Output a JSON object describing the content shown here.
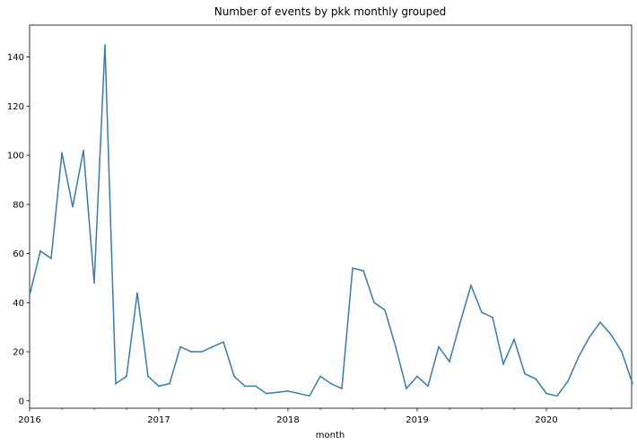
{
  "chart_data": {
    "type": "line",
    "title": "Number of events by pkk monthly grouped",
    "xlabel": "month",
    "ylabel": "",
    "x_tick_labels": [
      "2016",
      "2017",
      "2018",
      "2019",
      "2020"
    ],
    "y_tick_labels": [
      "0",
      "20",
      "40",
      "60",
      "80",
      "100",
      "120",
      "140"
    ],
    "ylim": [
      -3,
      153
    ],
    "grid": false,
    "legend": "none",
    "line_color": "#3a7ca5",
    "series": [
      {
        "x": [
          "2016-01",
          "2016-02",
          "2016-03",
          "2016-04",
          "2016-05",
          "2016-06",
          "2016-07",
          "2016-08",
          "2016-09",
          "2016-10",
          "2016-11",
          "2016-12",
          "2017-01",
          "2017-02",
          "2017-03",
          "2017-04",
          "2017-05",
          "2017-06",
          "2017-07",
          "2017-08",
          "2017-09",
          "2017-10",
          "2017-11",
          "2017-12",
          "2018-01",
          "2018-02",
          "2018-03",
          "2018-04",
          "2018-05",
          "2018-06",
          "2018-07",
          "2018-08",
          "2018-09",
          "2018-10",
          "2018-11",
          "2018-12",
          "2019-01",
          "2019-02",
          "2019-03",
          "2019-04",
          "2019-05",
          "2019-06",
          "2019-07",
          "2019-08",
          "2019-09",
          "2019-10",
          "2019-11",
          "2019-12",
          "2020-01",
          "2020-02",
          "2020-03",
          "2020-04",
          "2020-05",
          "2020-06",
          "2020-07",
          "2020-08",
          "2020-09"
        ],
        "values": [
          43,
          61,
          58,
          101,
          79,
          102,
          48,
          145,
          7,
          10,
          44,
          10,
          6,
          7,
          22,
          20,
          20,
          22,
          24,
          10,
          6,
          6,
          3,
          3.5,
          4,
          3,
          2,
          10,
          7,
          5,
          54,
          53,
          40,
          37,
          22,
          5,
          10,
          6,
          22,
          16,
          32,
          47,
          36,
          34,
          15,
          25,
          11,
          9,
          3,
          2,
          8,
          18,
          26,
          32,
          27,
          20,
          7
        ]
      }
    ]
  }
}
